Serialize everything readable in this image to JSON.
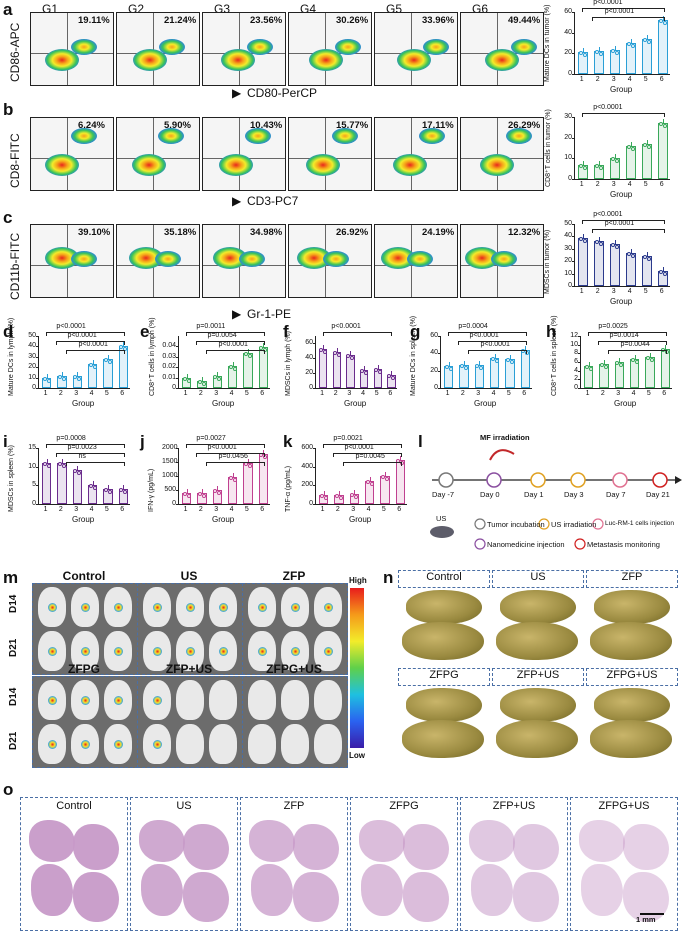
{
  "panel_letters": [
    "a",
    "b",
    "c",
    "d",
    "e",
    "f",
    "g",
    "h",
    "i",
    "j",
    "k",
    "l",
    "m",
    "n",
    "o"
  ],
  "groups_header": [
    "G1",
    "G2",
    "G3",
    "G4",
    "G5",
    "G6"
  ],
  "facs_rows": [
    {
      "y_axis": "CD86-APC",
      "x_axis": "CD80-PerCP",
      "percents": [
        "19.11%",
        "21.24%",
        "23.56%",
        "30.26%",
        "33.96%",
        "49.44%"
      ]
    },
    {
      "y_axis": "CD8-FITC",
      "x_axis": "CD3-PC7",
      "percents": [
        "6.24%",
        "5.90%",
        "10.43%",
        "15.77%",
        "17.11%",
        "26.29%"
      ]
    },
    {
      "y_axis": "CD11b-FITC",
      "x_axis": "Gr-1-PE",
      "percents": [
        "39.10%",
        "35.18%",
        "34.98%",
        "26.92%",
        "24.19%",
        "12.32%"
      ]
    }
  ],
  "chart_data": [
    {
      "id": "a",
      "type": "bar",
      "ylabel": "Mature DCs in tumor (%)",
      "xlabel": "Group",
      "categories": [
        "1",
        "2",
        "3",
        "4",
        "5",
        "6"
      ],
      "values": [
        21,
        22,
        23,
        30,
        34,
        52
      ],
      "ylim": [
        0,
        60
      ],
      "yticks": [
        "0",
        "20",
        "40",
        "60"
      ],
      "color": "#2a9fd6",
      "annotations": [
        "p<0.0001",
        "p<0.0001"
      ]
    },
    {
      "id": "b",
      "type": "bar",
      "ylabel": "CD8⁺T cells in tumor (%)",
      "xlabel": "Group",
      "categories": [
        "1",
        "2",
        "3",
        "4",
        "5",
        "6"
      ],
      "values": [
        7,
        7,
        10,
        16,
        17,
        27
      ],
      "ylim": [
        0,
        30
      ],
      "yticks": [
        "0",
        "10",
        "20",
        "30"
      ],
      "color": "#39a85a",
      "annotations": [
        "p<0.0001"
      ]
    },
    {
      "id": "c",
      "type": "bar",
      "ylabel": "MDSCs in tumor (%)",
      "xlabel": "Group",
      "categories": [
        "1",
        "2",
        "3",
        "4",
        "5",
        "6"
      ],
      "values": [
        39,
        36,
        34,
        27,
        24,
        12
      ],
      "ylim": [
        0,
        50
      ],
      "yticks": [
        "0",
        "10",
        "20",
        "30",
        "40",
        "50"
      ],
      "color": "#2b3a8c",
      "annotations": [
        "p<0.0001",
        "p<0.0001"
      ]
    },
    {
      "id": "d",
      "type": "bar",
      "ylabel": "Mature DCs in lymph (%)",
      "xlabel": "Group",
      "categories": [
        "1",
        "2",
        "3",
        "4",
        "5",
        "6"
      ],
      "values": [
        10,
        12,
        12,
        23,
        28,
        40
      ],
      "ylim": [
        0,
        50
      ],
      "yticks": [
        "0",
        "10",
        "20",
        "30",
        "40",
        "50"
      ],
      "color": "#2a9fd6",
      "annotations": [
        "p<0.0001",
        "p<0.0001",
        "p<0.0001"
      ]
    },
    {
      "id": "e",
      "type": "bar",
      "ylabel": "CD8⁺T cells in lymph (%)",
      "xlabel": "Group",
      "categories": [
        "1",
        "2",
        "3",
        "4",
        "5",
        "6"
      ],
      "values": [
        0.01,
        0.007,
        0.012,
        0.021,
        0.034,
        0.039
      ],
      "ylim": [
        0,
        0.05
      ],
      "yticks": [
        "0",
        "0.01",
        "0.02",
        "0.03",
        "0.04"
      ],
      "color": "#39a85a",
      "annotations": [
        "p=0.0011",
        "p=0.0054",
        "p<0.0001"
      ]
    },
    {
      "id": "f",
      "type": "bar",
      "ylabel": "MDSCs in lymph (%)",
      "xlabel": "Group",
      "categories": [
        "1",
        "2",
        "3",
        "4",
        "5",
        "6"
      ],
      "values": [
        53,
        48,
        45,
        24,
        25,
        17
      ],
      "ylim": [
        0,
        70
      ],
      "yticks": [
        "0",
        "20",
        "40",
        "60"
      ],
      "color": "#6a2c8c",
      "annotations": [
        "p<0.0001"
      ]
    },
    {
      "id": "g",
      "type": "bar",
      "ylabel": "Mature DCs in spleen (%)",
      "xlabel": "Group",
      "categories": [
        "1",
        "2",
        "3",
        "4",
        "5",
        "6"
      ],
      "values": [
        25,
        27,
        26,
        35,
        34,
        44
      ],
      "ylim": [
        0,
        60
      ],
      "yticks": [
        "0",
        "20",
        "40",
        "60"
      ],
      "color": "#2a9fd6",
      "annotations": [
        "p=0.0004",
        "p<0.0001",
        "p<0.0001"
      ]
    },
    {
      "id": "h",
      "type": "bar",
      "ylabel": "CD8⁺T cells in spleen (%)",
      "xlabel": "Group",
      "categories": [
        "1",
        "2",
        "3",
        "4",
        "5",
        "6"
      ],
      "values": [
        5,
        5.5,
        6,
        6.8,
        7.2,
        9
      ],
      "ylim": [
        0,
        12
      ],
      "yticks": [
        "0",
        "2",
        "4",
        "6",
        "8",
        "10",
        "12"
      ],
      "color": "#39a85a",
      "annotations": [
        "p=0.0025",
        "p=0.0014",
        "p=0.0044"
      ]
    },
    {
      "id": "i",
      "type": "bar",
      "ylabel": "MDSCs in spleen (%)",
      "xlabel": "Group",
      "categories": [
        "1",
        "2",
        "3",
        "4",
        "5",
        "6"
      ],
      "values": [
        11,
        11,
        9,
        5,
        4,
        4
      ],
      "ylim": [
        0,
        15
      ],
      "yticks": [
        "0",
        "5",
        "10",
        "15"
      ],
      "color": "#6a2c8c",
      "annotations": [
        "p=0.0008",
        "p=0.0023",
        "ns"
      ]
    },
    {
      "id": "j",
      "type": "bar",
      "ylabel": "IFN-γ (pg/mL)",
      "xlabel": "Group",
      "categories": [
        "1",
        "2",
        "3",
        "4",
        "5",
        "6"
      ],
      "values": [
        380,
        380,
        500,
        950,
        1450,
        1800
      ],
      "ylim": [
        0,
        2000
      ],
      "yticks": [
        "0",
        "500",
        "1000",
        "1500",
        "2000"
      ],
      "color": "#c04090",
      "annotations": [
        "p=0.0027",
        "p<0.0001",
        "p=0.0456"
      ]
    },
    {
      "id": "k",
      "type": "bar",
      "ylabel": "TNF-α (pg/mL)",
      "xlabel": "Group",
      "categories": [
        "1",
        "2",
        "3",
        "4",
        "5",
        "6"
      ],
      "values": [
        100,
        100,
        105,
        250,
        300,
        470
      ],
      "ylim": [
        0,
        600
      ],
      "yticks": [
        "0",
        "200",
        "400",
        "600"
      ],
      "color": "#c04090",
      "annotations": [
        "p=0.0021",
        "p<0.0001",
        "p=0.0045"
      ]
    }
  ],
  "timeline": {
    "title": "MF irradiation",
    "days": [
      "Day -7",
      "Day 0",
      "Day 1",
      "Day 3",
      "Day 7",
      "Day 21"
    ],
    "legend": [
      "Tumor incubation",
      "US irradiation",
      "Luc-RM-1 cells injection",
      "Nanomedicine injection",
      "Metastasis monitoring"
    ],
    "legend_prefix": "US"
  },
  "imaging": {
    "groups_top": [
      "Control",
      "US",
      "ZFP"
    ],
    "groups_bottom": [
      "ZFPG",
      "ZFP+US",
      "ZFPG+US"
    ],
    "rows": [
      "D14",
      "D21"
    ],
    "scale_high": "High",
    "scale_low": "Low"
  },
  "lungs": {
    "groups": [
      "Control",
      "US",
      "ZFP",
      "ZFPG",
      "ZFP+US",
      "ZFPG+US"
    ]
  },
  "histology": {
    "groups": [
      "Control",
      "US",
      "ZFP",
      "ZFPG",
      "ZFP+US",
      "ZFPG+US"
    ],
    "scale_bar": "1 mm"
  }
}
